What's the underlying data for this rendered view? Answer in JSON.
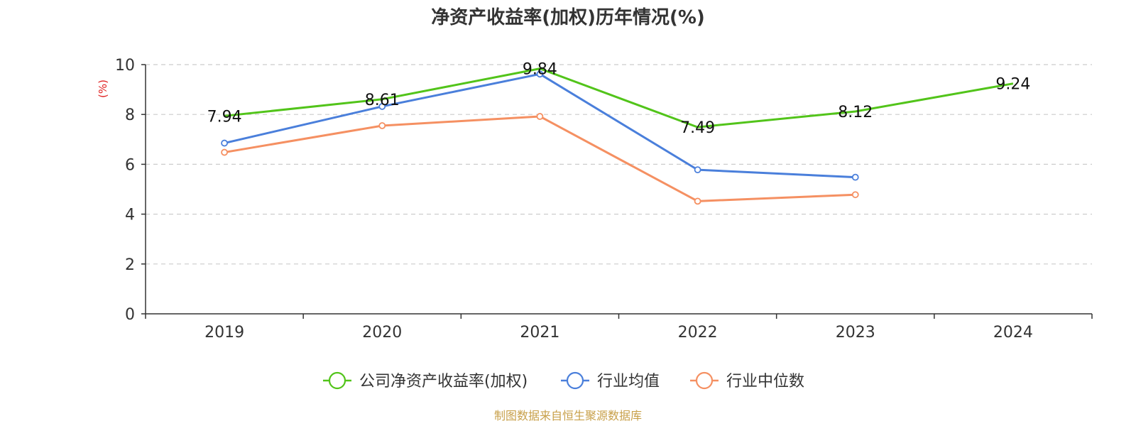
{
  "chart_data": {
    "type": "line",
    "title": "净资产收益率(加权)历年情况(%)",
    "ylabel": "(%)",
    "xlabel": "",
    "categories": [
      "2019",
      "2020",
      "2021",
      "2022",
      "2023",
      "2024"
    ],
    "ylim": [
      0,
      10
    ],
    "yticks": [
      0,
      2,
      4,
      6,
      8,
      10
    ],
    "grid": true,
    "legend_position": "bottom-center",
    "series": [
      {
        "name": "公司净资产收益率(加权)",
        "color": "#52c41a",
        "values": [
          7.94,
          8.61,
          9.84,
          7.49,
          8.12,
          9.24
        ],
        "labels": [
          "7.94",
          "8.61",
          "9.84",
          "7.49",
          "8.12",
          "9.24"
        ]
      },
      {
        "name": "行业均值",
        "color": "#4a7fdb",
        "values": [
          6.85,
          8.32,
          9.62,
          5.78,
          5.48,
          null
        ]
      },
      {
        "name": "行业中位数",
        "color": "#f59062",
        "values": [
          6.48,
          7.55,
          7.92,
          4.52,
          4.78,
          null
        ]
      }
    ]
  },
  "footer": {
    "source": "制图数据来自恒生聚源数据库",
    "source_color": "#c8a04a"
  },
  "ylabel_color": "#e02020"
}
